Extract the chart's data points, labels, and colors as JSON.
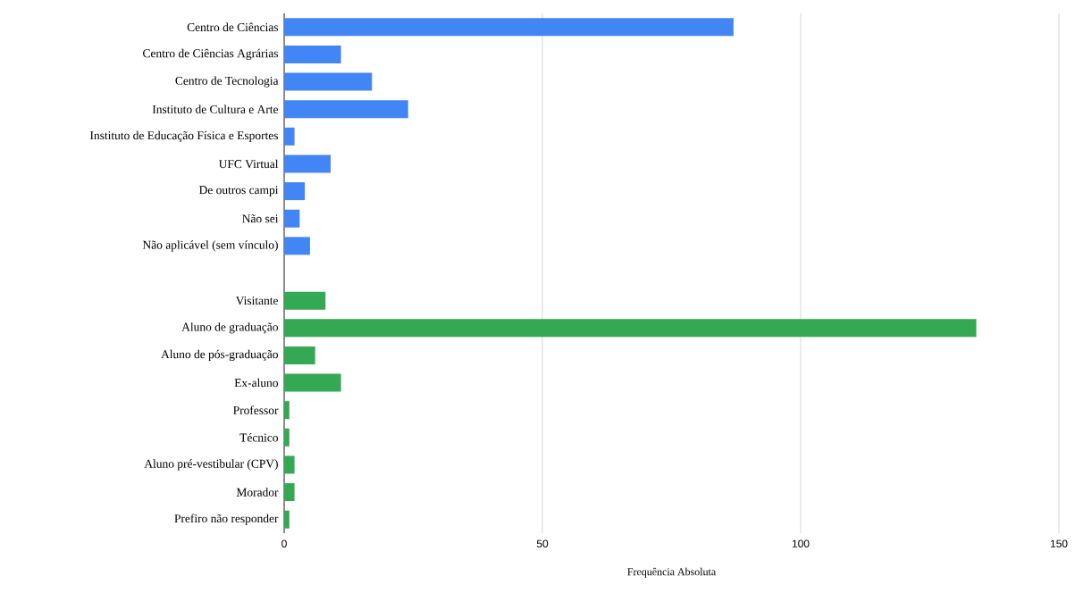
{
  "chart_data": {
    "type": "bar",
    "orientation": "horizontal",
    "xlabel": "Frequência Absoluta",
    "categories": [
      "Centro de Ciências",
      "Centro de Ciências Agrárias",
      "Centro de Tecnologia",
      "Instituto de Cultura e Arte",
      "Instituto de Educação Física e Esportes",
      "UFC Virtual",
      "De outros campi",
      "Não sei",
      "Não aplicável (sem vínculo)",
      null,
      "Visitante",
      "Aluno de graduação",
      "Aluno de pós-graduação",
      "Ex-aluno",
      "Professor",
      "Técnico",
      "Aluno pré-vestibular (CPV)",
      "Morador",
      "Prefiro não responder"
    ],
    "series": [
      {
        "color": "#4285f4",
        "values": [
          87,
          11,
          17,
          24,
          2,
          9,
          4,
          3,
          5,
          null,
          null,
          null,
          null,
          null,
          null,
          null,
          null,
          null,
          null
        ]
      },
      {
        "color": "#34a853",
        "values": [
          null,
          null,
          null,
          null,
          null,
          null,
          null,
          null,
          null,
          null,
          8,
          134,
          6,
          11,
          1,
          1,
          2,
          2,
          1
        ]
      }
    ],
    "xlim": [
      0,
      150
    ],
    "xticks": [
      0,
      50,
      100,
      150
    ],
    "grid": "x"
  }
}
